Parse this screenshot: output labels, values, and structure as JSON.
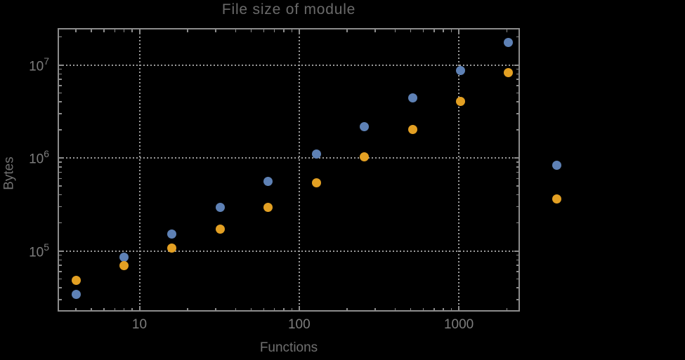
{
  "chart_data": {
    "type": "scatter",
    "title": "File size of module",
    "xlabel": "Functions",
    "ylabel": "Bytes",
    "xscale": "log",
    "yscale": "log",
    "grid": "major-dotted",
    "legend": "none",
    "xlim": [
      3.05,
      2450
    ],
    "ylim": [
      22000,
      25000000
    ],
    "x_ticks": {
      "values": [
        10,
        100,
        1000
      ],
      "labels": [
        "10",
        "100",
        "1000"
      ]
    },
    "y_ticks": {
      "values": [
        100000,
        1000000,
        10000000
      ],
      "labels": [
        {
          "base": "10",
          "exp": "5"
        },
        {
          "base": "10",
          "exp": "6"
        },
        {
          "base": "10",
          "exp": "7"
        }
      ]
    },
    "x": [
      4,
      8,
      16,
      32,
      64,
      128,
      256,
      512,
      1024,
      2048,
      4096
    ],
    "series": [
      {
        "name": "blue",
        "color": "#5E81B5",
        "values": [
          34000,
          86000,
          151000,
          293000,
          556000,
          1095000,
          2170000,
          4430000,
          8700000,
          17300000,
          835000
        ]
      },
      {
        "name": "orange",
        "color": "#E3A023",
        "values": [
          48000,
          69000,
          107000,
          171000,
          295000,
          540000,
          1035000,
          2020000,
          4060000,
          8330000,
          360000
        ]
      }
    ]
  },
  "colors": {
    "background": "#000000",
    "frame": "#8c8c8c",
    "grid": "#9a9a9a",
    "tick_label": "#7d7d7d",
    "axis_label": "#707070",
    "title": "#6a6a6a"
  }
}
